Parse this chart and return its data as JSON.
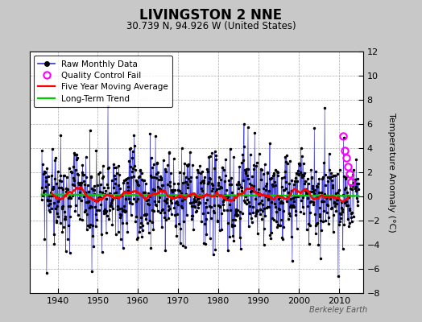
{
  "title": "LIVINGSTON 2 NNE",
  "subtitle": "30.739 N, 94.926 W (United States)",
  "ylabel": "Temperature Anomaly (°C)",
  "watermark": "Berkeley Earth",
  "ylim": [
    -8,
    12
  ],
  "xlim": [
    1933,
    2016
  ],
  "xticks": [
    1940,
    1950,
    1960,
    1970,
    1980,
    1990,
    2000,
    2010
  ],
  "yticks": [
    -8,
    -6,
    -4,
    -2,
    0,
    2,
    4,
    6,
    8,
    10,
    12
  ],
  "bg_color": "#c8c8c8",
  "plot_bg_color": "#ffffff",
  "raw_color": "#3333cc",
  "dot_color": "#000000",
  "moving_avg_color": "#ff0000",
  "trend_color": "#00cc00",
  "qc_color": "#ff00ff",
  "seed": 99,
  "start_year": 1936.0,
  "end_year": 2014.92,
  "noise_std": 1.8,
  "moving_avg_window": 60,
  "qc_times": [
    2011.0,
    2011.42,
    2011.83,
    2012.25,
    2012.67,
    2013.08
  ],
  "qc_values": [
    5.0,
    3.8,
    3.2,
    2.5,
    1.9,
    1.2
  ]
}
